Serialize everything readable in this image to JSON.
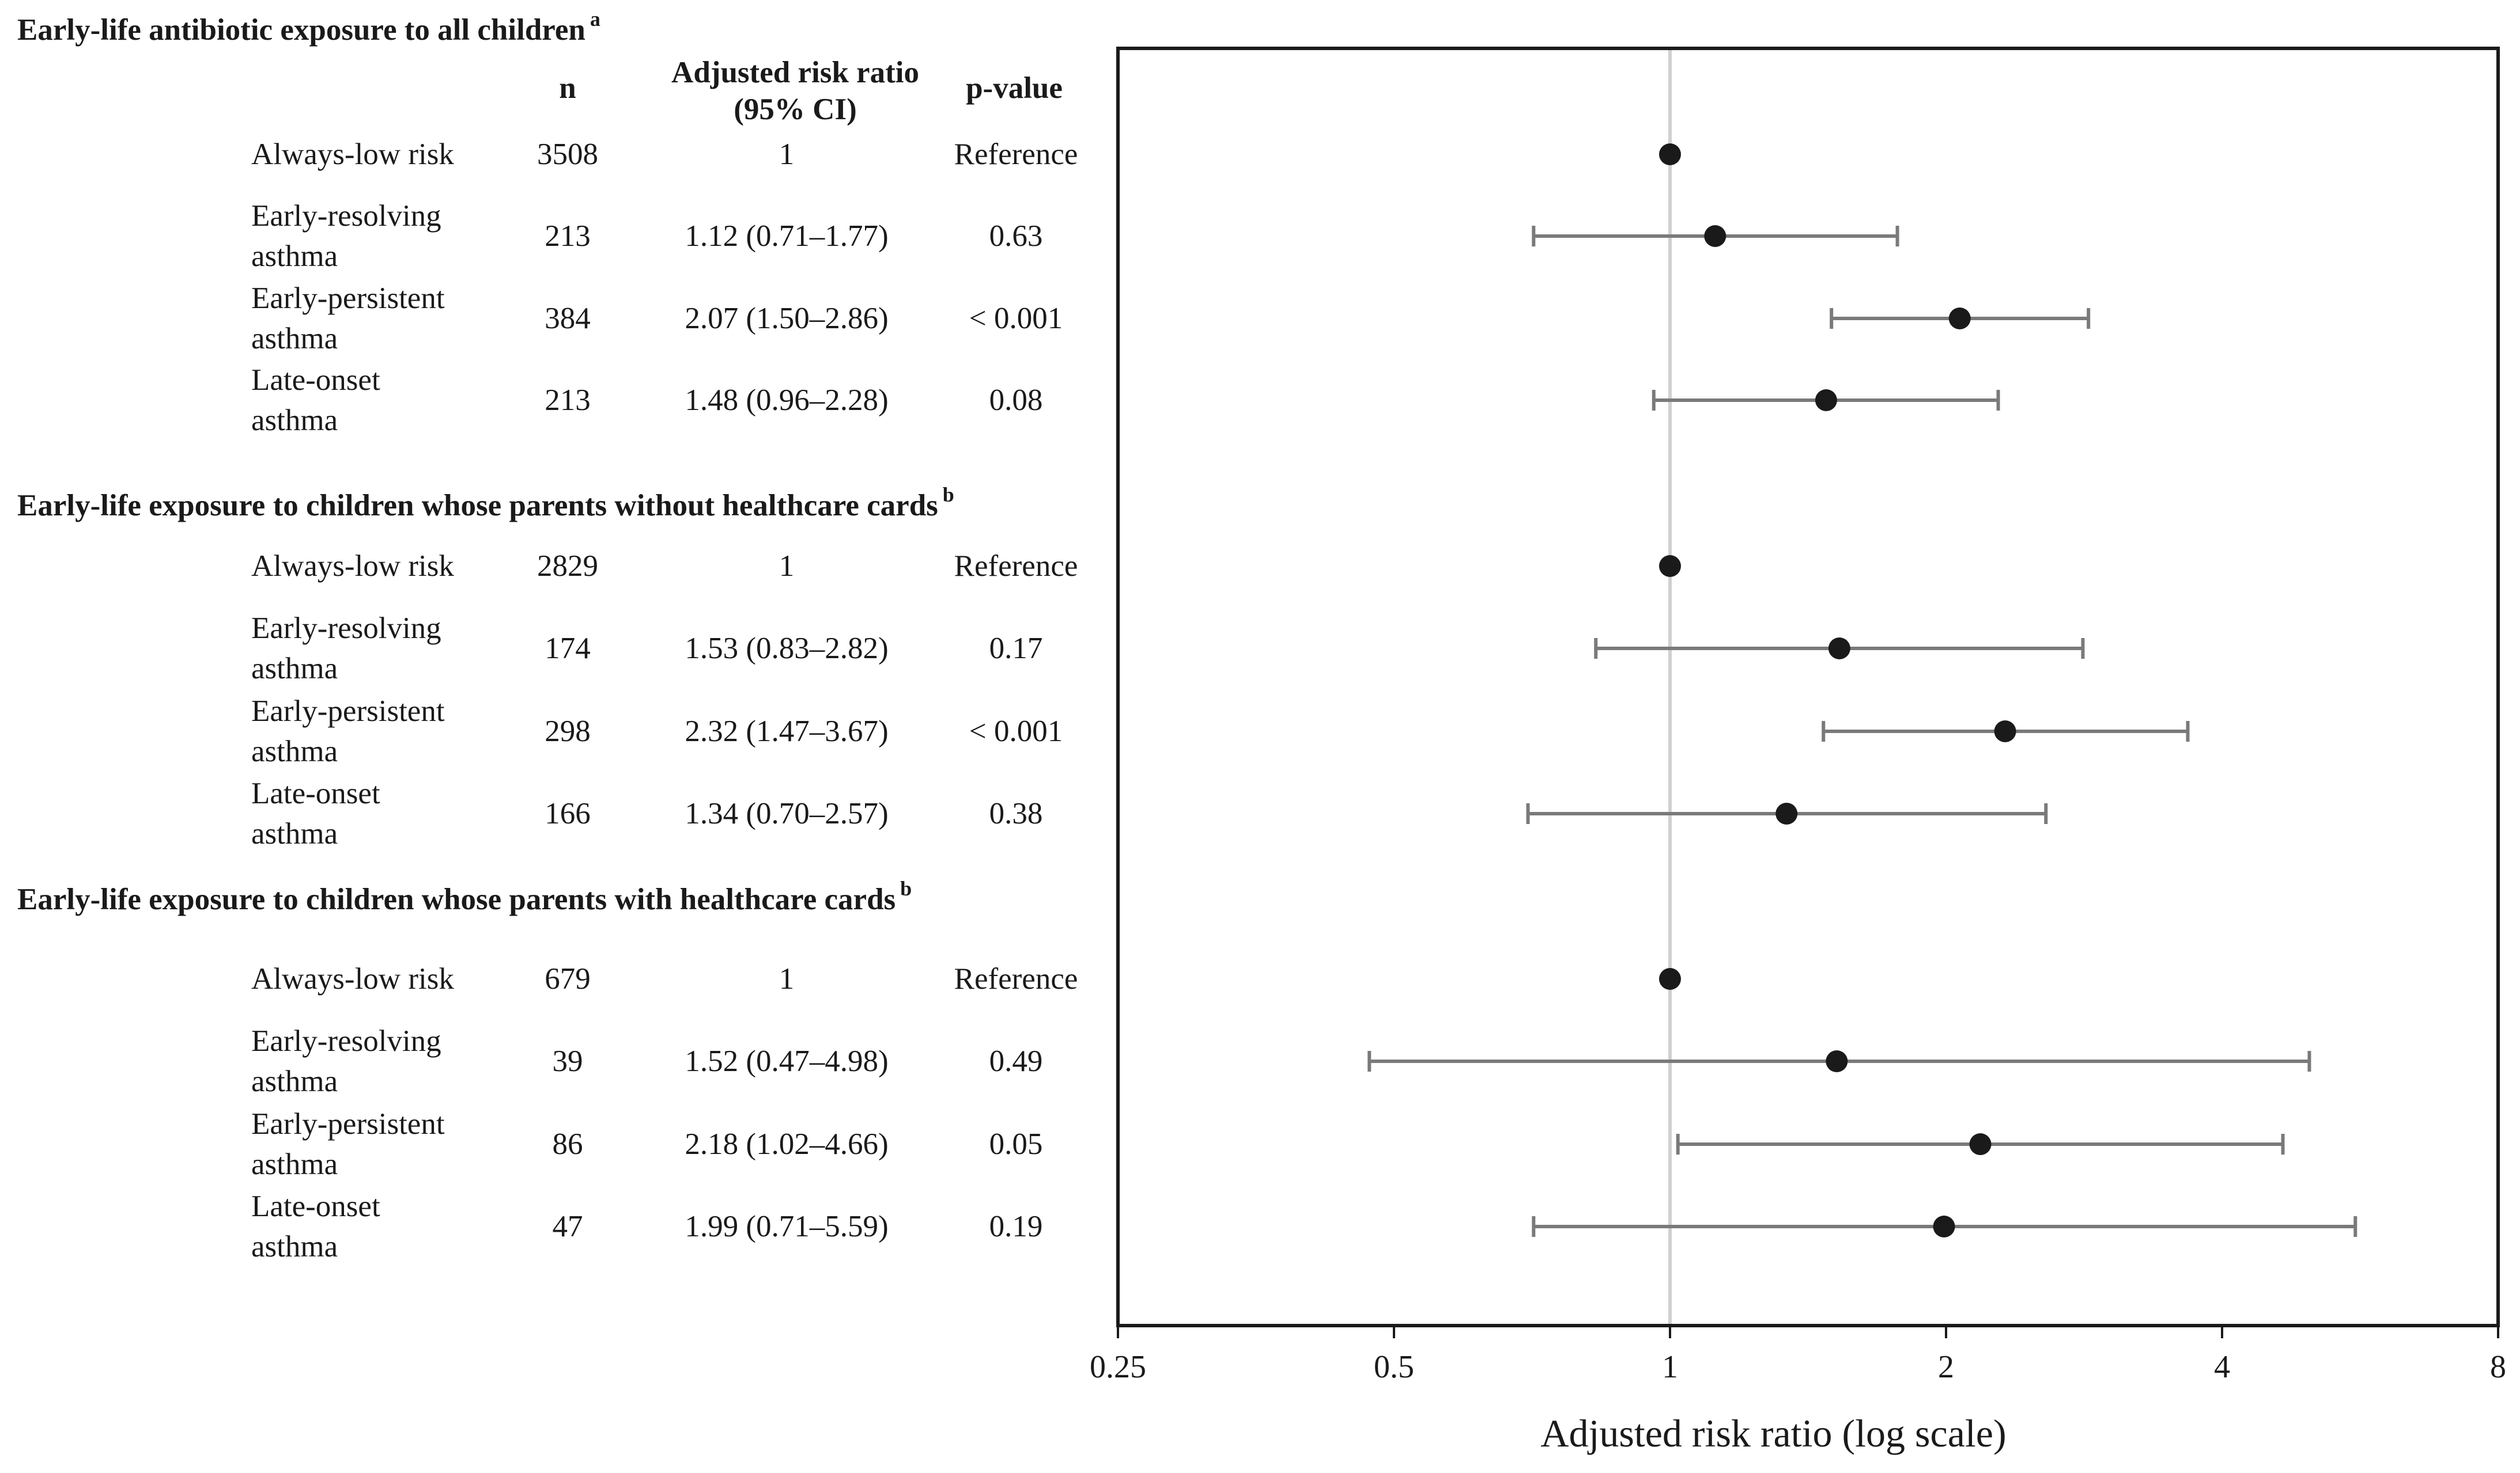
{
  "header": {
    "n_label": "n",
    "ratio_label_line1": "Adjusted risk ratio",
    "ratio_label_line2": "(95% CI)",
    "p_label": "p-value"
  },
  "sections": [
    {
      "title": "Early-life antibiotic exposure to all children",
      "superscript": "a",
      "rows": [
        {
          "label": "Always-low risk",
          "n": "3508",
          "ci_text": "1",
          "p": "Reference"
        },
        {
          "label": "Early-resolving\nasthma",
          "n": "213",
          "ci_text": "1.12 (0.71–1.77)",
          "p": "0.63"
        },
        {
          "label": "Early-persistent\nasthma",
          "n": "384",
          "ci_text": "2.07 (1.50–2.86)",
          "p": "< 0.001"
        },
        {
          "label": "Late-onset\nasthma",
          "n": "213",
          "ci_text": "1.48 (0.96–2.28)",
          "p": "0.08"
        }
      ]
    },
    {
      "title": "Early-life exposure to children whose parents without healthcare cards",
      "superscript": "b",
      "rows": [
        {
          "label": "Always-low risk",
          "n": "2829",
          "ci_text": "1",
          "p": "Reference"
        },
        {
          "label": "Early-resolving\nasthma",
          "n": "174",
          "ci_text": "1.53 (0.83–2.82)",
          "p": "0.17"
        },
        {
          "label": "Early-persistent\nasthma",
          "n": "298",
          "ci_text": "2.32 (1.47–3.67)",
          "p": "< 0.001"
        },
        {
          "label": "Late-onset\nasthma",
          "n": "166",
          "ci_text": "1.34 (0.70–2.57)",
          "p": "0.38"
        }
      ]
    },
    {
      "title": "Early-life exposure to children whose parents with healthcare cards",
      "superscript": "b",
      "rows": [
        {
          "label": "Always-low risk",
          "n": "679",
          "ci_text": "1",
          "p": "Reference"
        },
        {
          "label": "Early-resolving\nasthma",
          "n": "39",
          "ci_text": "1.52 (0.47–4.98)",
          "p": "0.49"
        },
        {
          "label": "Early-persistent\nasthma",
          "n": "86",
          "ci_text": "2.18 (1.02–4.66)",
          "p": "0.05"
        },
        {
          "label": "Late-onset\nasthma",
          "n": "47",
          "ci_text": "1.99 (0.71–5.59)",
          "p": "0.19"
        }
      ]
    }
  ],
  "chart_data": {
    "type": "scatter",
    "subtype": "forest-plot",
    "xlabel": "Adjusted risk ratio (log scale)",
    "x_scale": "log2",
    "xlim": [
      0.25,
      8
    ],
    "x_ticks": [
      0.25,
      0.5,
      1,
      2,
      4,
      8
    ],
    "x_tick_labels": [
      "0.25",
      "0.5",
      "1",
      "2",
      "4",
      "8"
    ],
    "reference_line": 1,
    "series": [
      {
        "name": "Early-life antibiotic exposure to all children",
        "points": [
          {
            "label": "Always-low risk",
            "estimate": 1,
            "lower": null,
            "upper": null
          },
          {
            "label": "Early-resolving asthma",
            "estimate": 1.12,
            "lower": 0.71,
            "upper": 1.77
          },
          {
            "label": "Early-persistent asthma",
            "estimate": 2.07,
            "lower": 1.5,
            "upper": 2.86
          },
          {
            "label": "Late-onset asthma",
            "estimate": 1.48,
            "lower": 0.96,
            "upper": 2.28
          }
        ]
      },
      {
        "name": "Early-life exposure to children whose parents without healthcare cards",
        "points": [
          {
            "label": "Always-low risk",
            "estimate": 1,
            "lower": null,
            "upper": null
          },
          {
            "label": "Early-resolving asthma",
            "estimate": 1.53,
            "lower": 0.83,
            "upper": 2.82
          },
          {
            "label": "Early-persistent asthma",
            "estimate": 2.32,
            "lower": 1.47,
            "upper": 3.67
          },
          {
            "label": "Late-onset asthma",
            "estimate": 1.34,
            "lower": 0.7,
            "upper": 2.57
          }
        ]
      },
      {
        "name": "Early-life exposure to children whose parents with healthcare cards",
        "points": [
          {
            "label": "Always-low risk",
            "estimate": 1,
            "lower": null,
            "upper": null
          },
          {
            "label": "Early-resolving asthma",
            "estimate": 1.52,
            "lower": 0.47,
            "upper": 4.98
          },
          {
            "label": "Early-persistent asthma",
            "estimate": 2.18,
            "lower": 1.02,
            "upper": 4.66
          },
          {
            "label": "Late-onset asthma",
            "estimate": 1.99,
            "lower": 0.71,
            "upper": 5.59
          }
        ]
      }
    ],
    "colors": {
      "marker": "#1a1a1a",
      "whisker": "#7a7a7a",
      "reference_line": "#d0d0d0",
      "frame": "#1a1a1a"
    }
  }
}
